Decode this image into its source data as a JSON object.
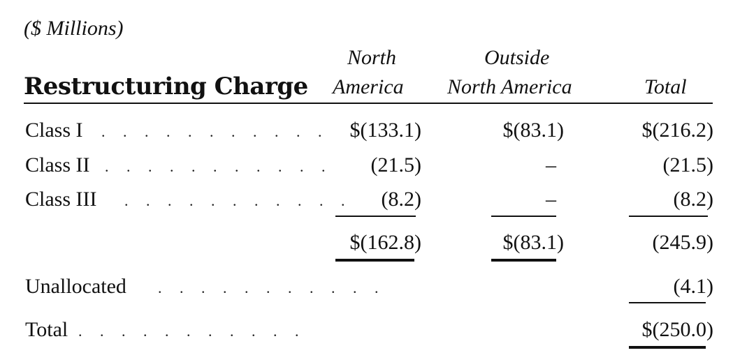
{
  "units_label": "($ Millions)",
  "header": {
    "title": "Restructuring Charge",
    "col_na_line1": "North",
    "col_na_line2": "America",
    "col_ona_line1": "Outside",
    "col_ona_line2": "North America",
    "col_total": "Total"
  },
  "rows": [
    {
      "label": "Class I",
      "na": "$(133.1)",
      "ona": "$(83.1)",
      "total": "$(216.2)"
    },
    {
      "label": "Class II",
      "na": "(21.5)",
      "ona": "–",
      "total": "(21.5)"
    },
    {
      "label": "Class III",
      "na": "(8.2)",
      "ona": "–",
      "total": "(8.2)"
    },
    {
      "label": "",
      "na": "$(162.8)",
      "ona": "$(83.1)",
      "total": "(245.9)"
    },
    {
      "label": "Unallocated",
      "na": "",
      "ona": "",
      "total": "(4.1)"
    },
    {
      "label": "Total",
      "na": "",
      "ona": "",
      "total": "$(250.0)"
    }
  ],
  "leader_dots": ". . . . . . . . . . ."
}
